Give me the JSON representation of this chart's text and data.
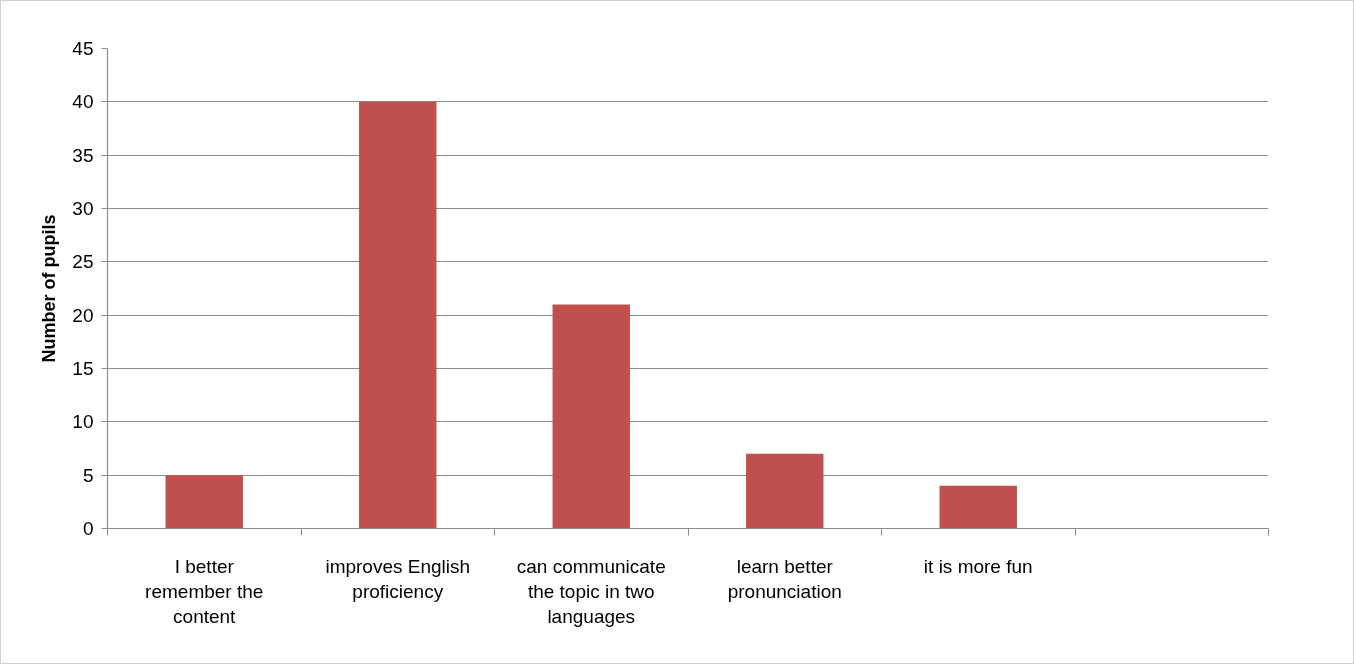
{
  "chart_data": {
    "type": "bar",
    "ylabel": "Number of pupils",
    "categories": [
      "I better remember the content",
      "improves English proficiency",
      "can communicate the topic in two languages",
      "learn better pronunciation",
      "it is more fun",
      null
    ],
    "values": [
      5,
      40,
      21,
      7,
      4,
      null
    ],
    "color": "#c0504d",
    "ylim": [
      0,
      45
    ],
    "yticks": [
      0,
      5,
      10,
      15,
      20,
      25,
      30,
      35,
      40,
      45
    ],
    "grid": "y"
  }
}
